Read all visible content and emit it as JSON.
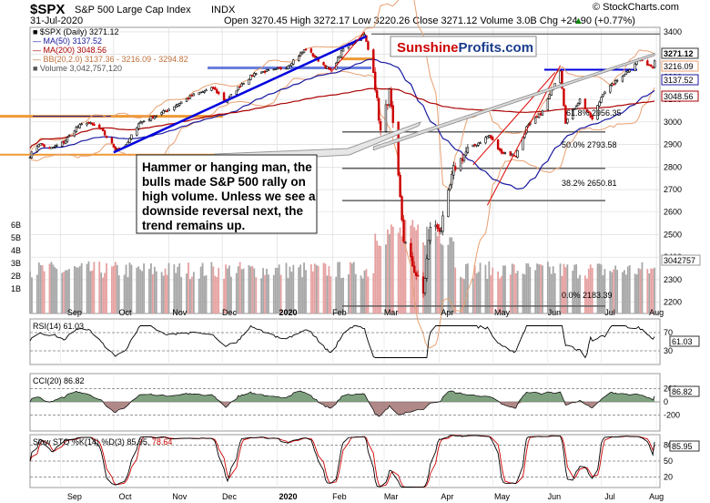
{
  "header": {
    "symbol": "$SPX",
    "index_name": "S&P 500 Large Cap Index",
    "exchange": "INDX",
    "date": "31-Jul-2020",
    "stats": "Open 3270.45  High 3272.17  Low 3220.26  Close 3271.12  Volume 3.0B  Chg +24.90 (+0.77%)",
    "stats_arrow": "▲",
    "copyright": "© StockCharts.com"
  },
  "brand": {
    "part1": "Sunshine",
    "part2": "Profits",
    "part3": ".com"
  },
  "annotation": {
    "lines": [
      "Hammer or hanging man, the",
      "bulls made S&P 500 rally on",
      "high volume. Unless we see a",
      "downside reversal next, the",
      "trend remains up."
    ]
  },
  "legend": {
    "price": "■ $SPX (Daily) 3271.12",
    "ma50": "— MA(50) 3137.52",
    "ma200": "— MA(200) 3048.56",
    "bb": "— BB(20,2.0) 3137.36 - 3216.09 - 3294.82",
    "volume": "■ Volume 3,042,757,120"
  },
  "colors": {
    "up": "#000000",
    "down": "#cc0000",
    "ma50": "#1a1aa0",
    "ma200": "#aa0000",
    "bb": "#e8a070",
    "volume_up": "#a6a6a6",
    "volume_down": "#e6a0a0",
    "trend_blue": "#0000dd",
    "trend_red": "#dd0000",
    "support_orange": "#ee9933",
    "support_blue_light": "#6a7fdc",
    "fib_gray": "#606060",
    "rsi_line": "#000000",
    "cci_fill_pos": "#5f8a5f",
    "cci_fill_neg": "#9c6a6a",
    "sto_k": "#000000",
    "sto_d": "#cc0000",
    "brand_red": "#cc0000",
    "brand_blue": "#1a3c8c"
  },
  "chart_data": [
    {
      "type": "candlestick",
      "title": "$SPX S&P 500 Large Cap Index INDX",
      "ylim": [
        2150,
        3420
      ],
      "y_ticks": [
        2200,
        2300,
        2400,
        2500,
        2600,
        2700,
        2800,
        2900,
        3000,
        3100,
        3200,
        3300,
        3400
      ],
      "x_labels": [
        "Sep",
        "Oct",
        "Nov",
        "Dec",
        "2020",
        "Feb",
        "Mar",
        "Apr",
        "May",
        "Jun",
        "Jul",
        "Aug"
      ],
      "close_path": [
        [
          "2019-08-15",
          2850
        ],
        [
          "2019-08-20",
          2905
        ],
        [
          "2019-08-26",
          2880
        ],
        [
          "2019-09-03",
          2910
        ],
        [
          "2019-09-10",
          2975
        ],
        [
          "2019-09-16",
          3000
        ],
        [
          "2019-09-24",
          2965
        ],
        [
          "2019-10-02",
          2880
        ],
        [
          "2019-10-08",
          2895
        ],
        [
          "2019-10-15",
          2995
        ],
        [
          "2019-10-28",
          3040
        ],
        [
          "2019-11-05",
          3075
        ],
        [
          "2019-11-15",
          3120
        ],
        [
          "2019-11-26",
          3150
        ],
        [
          "2019-12-03",
          3090
        ],
        [
          "2019-12-12",
          3170
        ],
        [
          "2019-12-20",
          3220
        ],
        [
          "2019-12-31",
          3230
        ],
        [
          "2020-01-06",
          3245
        ],
        [
          "2020-01-17",
          3325
        ],
        [
          "2020-01-31",
          3225
        ],
        [
          "2020-02-07",
          3325
        ],
        [
          "2020-02-19",
          3386
        ],
        [
          "2020-02-24",
          3225
        ],
        [
          "2020-02-28",
          2955
        ],
        [
          "2020-03-04",
          3130
        ],
        [
          "2020-03-09",
          2745
        ],
        [
          "2020-03-12",
          2480
        ],
        [
          "2020-03-16",
          2385
        ],
        [
          "2020-03-23",
          2237
        ],
        [
          "2020-03-27",
          2540
        ],
        [
          "2020-04-02",
          2525
        ],
        [
          "2020-04-09",
          2790
        ],
        [
          "2020-04-17",
          2875
        ],
        [
          "2020-04-29",
          2940
        ],
        [
          "2020-05-05",
          2870
        ],
        [
          "2020-05-14",
          2850
        ],
        [
          "2020-05-20",
          2975
        ],
        [
          "2020-05-29",
          3045
        ],
        [
          "2020-06-08",
          3232
        ],
        [
          "2020-06-11",
          3000
        ],
        [
          "2020-06-19",
          3100
        ],
        [
          "2020-06-26",
          3010
        ],
        [
          "2020-07-02",
          3130
        ],
        [
          "2020-07-10",
          3185
        ],
        [
          "2020-07-22",
          3276
        ],
        [
          "2020-07-30",
          3246
        ],
        [
          "2020-07-31",
          3271
        ]
      ],
      "last_close": 3271.12,
      "price_labels": [
        "3271.12",
        "3216.09",
        "3137.52",
        "3048.56"
      ],
      "fib_labels": [
        "61.8% 2956.35",
        "50.0% 2793.58",
        "38.2% 2650.81",
        "0.0% 2183.39"
      ]
    },
    {
      "type": "bar",
      "title": "Volume",
      "y_ticks_labels": [
        "1B",
        "2B",
        "3B",
        "4B",
        "5B",
        "6B"
      ],
      "last_value_label": "3042757",
      "last_value": 3042757120
    },
    {
      "type": "line",
      "title": "RSI(14) 61.03",
      "ylim": [
        0,
        100
      ],
      "y_ticks": [
        30,
        70
      ],
      "last_value": 61.03
    },
    {
      "type": "area",
      "title": "CCI(20) 86.82",
      "y_ticks": [
        -200,
        0,
        200
      ],
      "last_value": 86.82
    },
    {
      "type": "line",
      "title": "Slow STO %K(14) %D(3) 85.95, 78.64",
      "legend_k": "Slow STO %K(14) %D(3) 85.95,",
      "legend_d": "78.64",
      "ylim": [
        0,
        100
      ],
      "y_ticks": [
        20,
        50,
        80
      ],
      "k_last": 85.95,
      "d_last": 78.64,
      "x_labels": [
        "Sep",
        "Oct",
        "Nov",
        "Dec",
        "2020",
        "Feb",
        "Mar",
        "Apr",
        "May",
        "Jun",
        "Jul",
        "Aug"
      ]
    }
  ]
}
